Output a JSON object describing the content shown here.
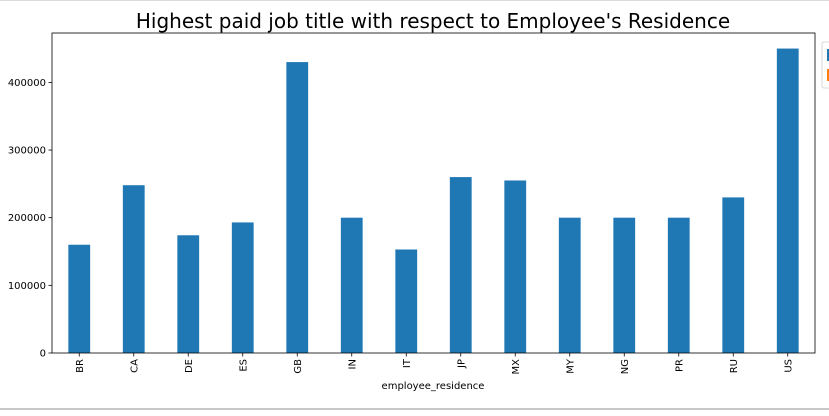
{
  "chart_data": {
    "type": "bar",
    "title": "Highest paid job title with respect to Employee's Residence",
    "xlabel": "employee_residence",
    "ylabel": "",
    "categories": [
      "BR",
      "CA",
      "DE",
      "ES",
      "GB",
      "IN",
      "IT",
      "JP",
      "MX",
      "MY",
      "NG",
      "PR",
      "RU",
      "US"
    ],
    "values": [
      160000,
      248000,
      174000,
      193000,
      430000,
      200000,
      153000,
      260000,
      255000,
      200000,
      200000,
      200000,
      230000,
      450000
    ],
    "ylim": [
      0,
      473000
    ],
    "yticks": [
      0,
      100000,
      200000,
      300000,
      400000
    ],
    "ytick_labels": [
      "0",
      "100000",
      "200000",
      "300000",
      "400000"
    ],
    "grid": false,
    "legend_placement": "top-right",
    "bar_color": "#1f77b4"
  }
}
